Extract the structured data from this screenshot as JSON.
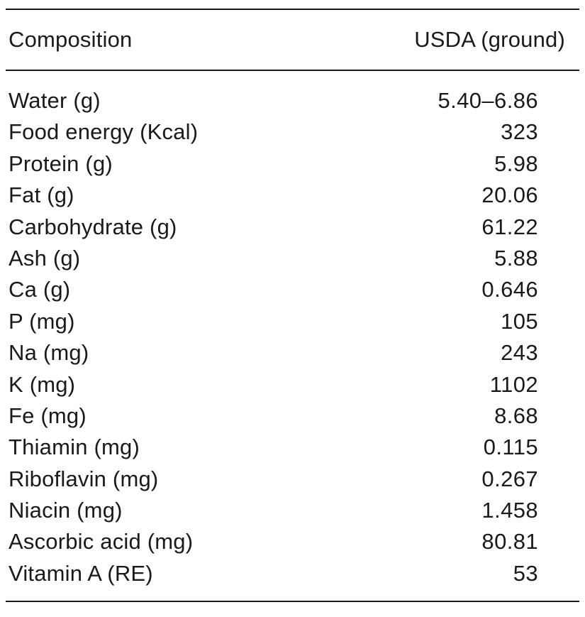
{
  "table": {
    "header": {
      "name": "Composition",
      "value": "USDA (ground)"
    },
    "rows": [
      {
        "name": "Water (g)",
        "value": "5.40–6.86"
      },
      {
        "name": "Food energy (Kcal)",
        "value": "323"
      },
      {
        "name": "Protein (g)",
        "value": "5.98"
      },
      {
        "name": "Fat (g)",
        "value": "20.06"
      },
      {
        "name": "Carbohydrate (g)",
        "value": "61.22"
      },
      {
        "name": "Ash (g)",
        "value": "5.88"
      },
      {
        "name": "Ca (g)",
        "value": "0.646"
      },
      {
        "name": "P (mg)",
        "value": "105"
      },
      {
        "name": "Na (mg)",
        "value": "243"
      },
      {
        "name": "K (mg)",
        "value": "1102"
      },
      {
        "name": "Fe (mg)",
        "value": "8.68"
      },
      {
        "name": "Thiamin (mg)",
        "value": "0.115"
      },
      {
        "name": "Riboflavin (mg)",
        "value": "0.267"
      },
      {
        "name": "Niacin (mg)",
        "value": "1.458"
      },
      {
        "name": "Ascorbic acid (mg)",
        "value": "80.81"
      },
      {
        "name": "Vitamin A (RE)",
        "value": "53"
      }
    ]
  }
}
